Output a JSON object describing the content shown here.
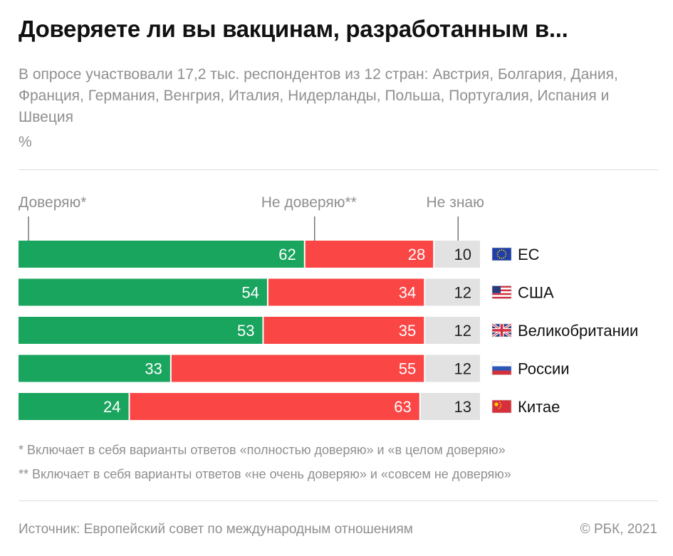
{
  "title": "Доверяете ли вы вакцинам, разработанным в...",
  "subtitle": "В опросе участвовали 17,2 тыс. респондентов из 12 стран: Австрия, Болгария, Дания, Франция, Германия, Венгрия, Италия, Нидерланды, Польша, Португалия, Испания и Швеция",
  "unit": "%",
  "footnotes": [
    "* Включает в себя варианты ответов «полностью доверяю» и «в целом доверяю»",
    "** Включает в себя варианты ответов «не очень доверяю» и «совсем не доверяю»"
  ],
  "source": "Источник: Европейский совет по международным отношениям",
  "copyright": "© РБК, 2021",
  "chart_data": {
    "type": "bar",
    "orientation": "horizontal",
    "stacked": true,
    "categories": [
      "ЕС",
      "США",
      "Великобритании",
      "России",
      "Китае"
    ],
    "category_icons": [
      "eu-flag-icon",
      "us-flag-icon",
      "uk-flag-icon",
      "russia-flag-icon",
      "china-flag-icon"
    ],
    "series": [
      {
        "name": "Доверяю*",
        "values": [
          62,
          54,
          53,
          33,
          24
        ],
        "color": "#1aa55f"
      },
      {
        "name": "Не доверяю**",
        "values": [
          28,
          34,
          35,
          55,
          63
        ],
        "color": "#fb4646"
      },
      {
        "name": "Не знаю",
        "values": [
          10,
          12,
          12,
          12,
          13
        ],
        "color": "#e2e2e2"
      }
    ],
    "xlim": [
      0,
      100
    ],
    "legend": "top"
  }
}
